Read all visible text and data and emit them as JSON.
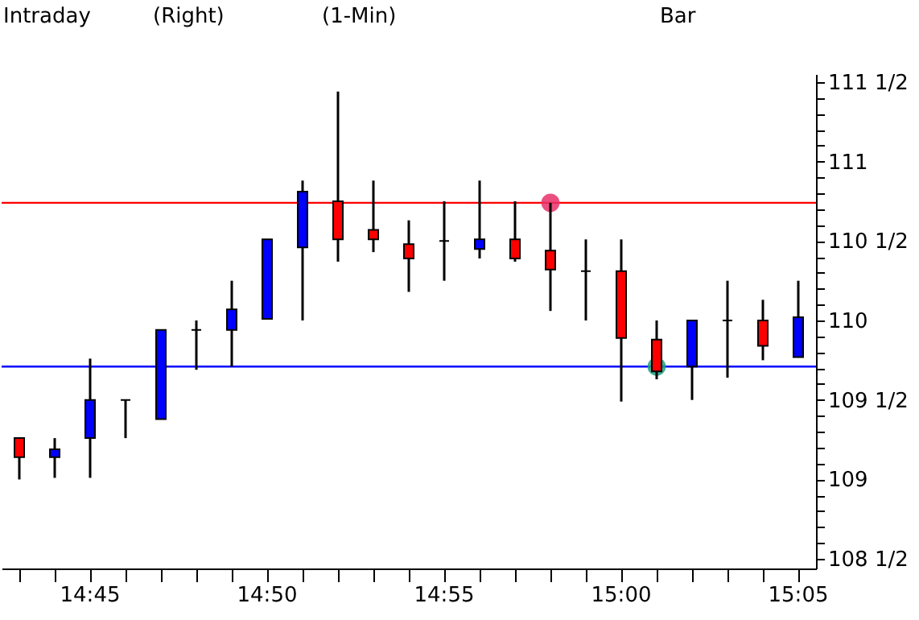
{
  "chart_data": {
    "type": "candlestick",
    "title": "Intraday",
    "annotations": [
      "(Right)",
      "(1-Min)",
      "Bar"
    ],
    "categories": [
      null,
      null,
      "14:45",
      null,
      null,
      null,
      null,
      "14:50",
      null,
      null,
      null,
      null,
      "14:55",
      null,
      null,
      null,
      null,
      "15:00",
      null,
      null,
      null,
      null,
      "15:05"
    ],
    "ohlc": [
      [
        109.26,
        109.26,
        109.0,
        109.14
      ],
      [
        109.14,
        109.26,
        109.01,
        109.19
      ],
      [
        109.26,
        109.76,
        109.01,
        109.5
      ],
      [
        109.5,
        109.5,
        109.26,
        109.5
      ],
      [
        109.38,
        109.94,
        109.38,
        109.94
      ],
      [
        109.94,
        110.0,
        109.69,
        109.94
      ],
      [
        109.94,
        110.25,
        109.71,
        110.07
      ],
      [
        110.01,
        110.51,
        110.01,
        110.51
      ],
      [
        110.46,
        110.88,
        110.0,
        110.81
      ],
      [
        110.75,
        111.44,
        110.37,
        110.51
      ],
      [
        110.57,
        110.88,
        110.43,
        110.51
      ],
      [
        110.48,
        110.63,
        110.18,
        110.39
      ],
      [
        110.5,
        110.75,
        110.25,
        110.5
      ],
      [
        110.45,
        110.88,
        110.39,
        110.51
      ],
      [
        110.51,
        110.75,
        110.37,
        110.39
      ],
      [
        110.44,
        110.74,
        110.06,
        110.32
      ],
      [
        110.31,
        110.51,
        110.0,
        110.31
      ],
      [
        110.31,
        110.51,
        109.49,
        109.89
      ],
      [
        109.88,
        110.0,
        109.63,
        109.68
      ],
      [
        109.71,
        110.0,
        109.5,
        110.0
      ],
      [
        110.0,
        110.25,
        109.64,
        110.0
      ],
      [
        110.0,
        110.13,
        109.75,
        109.84
      ],
      [
        109.77,
        110.25,
        109.77,
        110.02
      ]
    ],
    "colors": [
      "#ff0000",
      "#0000ff",
      "#0000ff",
      "#000000",
      "#0000ff",
      "#000000",
      "#0000ff",
      "#0000ff",
      "#0000ff",
      "#ff0000",
      "#ff0000",
      "#ff0000",
      "#000000",
      "#0000ff",
      "#ff0000",
      "#ff0000",
      "#000000",
      "#ff0000",
      "#ff0000",
      "#0000ff",
      "#000000",
      "#ff0000",
      "#0000ff"
    ],
    "series": [
      {
        "type": "scatter",
        "color": "#e8306a",
        "values": [
          null,
          null,
          null,
          null,
          null,
          null,
          null,
          null,
          null,
          null,
          null,
          null,
          null,
          null,
          null,
          110.74,
          null,
          null,
          null,
          null,
          null,
          null,
          null
        ]
      },
      {
        "type": "scatter",
        "color": "#20a080",
        "values": [
          null,
          null,
          null,
          null,
          null,
          null,
          null,
          null,
          null,
          null,
          null,
          null,
          null,
          null,
          null,
          null,
          null,
          null,
          109.71,
          null,
          null,
          null,
          null
        ]
      }
    ],
    "ylim": [
      108.44,
      111.55
    ],
    "yticks": [
      {
        "value": 108.5,
        "label": "108 1/2"
      },
      {
        "value": 108.6,
        "label": null
      },
      {
        "value": 108.7,
        "label": null
      },
      {
        "value": 108.8,
        "label": null
      },
      {
        "value": 108.9,
        "label": null
      },
      {
        "value": 109,
        "label": "109"
      },
      {
        "value": 109.1,
        "label": null
      },
      {
        "value": 109.2,
        "label": null
      },
      {
        "value": 109.3,
        "label": null
      },
      {
        "value": 109.4,
        "label": null
      },
      {
        "value": 109.5,
        "label": "109 1/2"
      },
      {
        "value": 109.6,
        "label": null
      },
      {
        "value": 109.7,
        "label": null
      },
      {
        "value": 109.8,
        "label": null
      },
      {
        "value": 109.9,
        "label": null
      },
      {
        "value": 110,
        "label": "110"
      },
      {
        "value": 110.1,
        "label": null
      },
      {
        "value": 110.2,
        "label": null
      },
      {
        "value": 110.3,
        "label": null
      },
      {
        "value": 110.4,
        "label": null
      },
      {
        "value": 110.5,
        "label": "110 1/2"
      },
      {
        "value": 110.6,
        "label": null
      },
      {
        "value": 110.7,
        "label": null
      },
      {
        "value": 110.8,
        "label": null
      },
      {
        "value": 110.9,
        "label": null
      },
      {
        "value": 111,
        "label": "111"
      },
      {
        "value": 111.1,
        "label": null
      },
      {
        "value": 111.2,
        "label": null
      },
      {
        "value": 111.3,
        "label": null
      },
      {
        "value": 111.4,
        "label": null
      },
      {
        "value": 111.5,
        "label": "111 1/2"
      }
    ],
    "ref_lines": [
      {
        "axis": "y",
        "value": 110.74,
        "color": "#ff0000"
      },
      {
        "axis": "y",
        "value": 109.71,
        "color": "#0000ff"
      }
    ],
    "grid": false
  }
}
